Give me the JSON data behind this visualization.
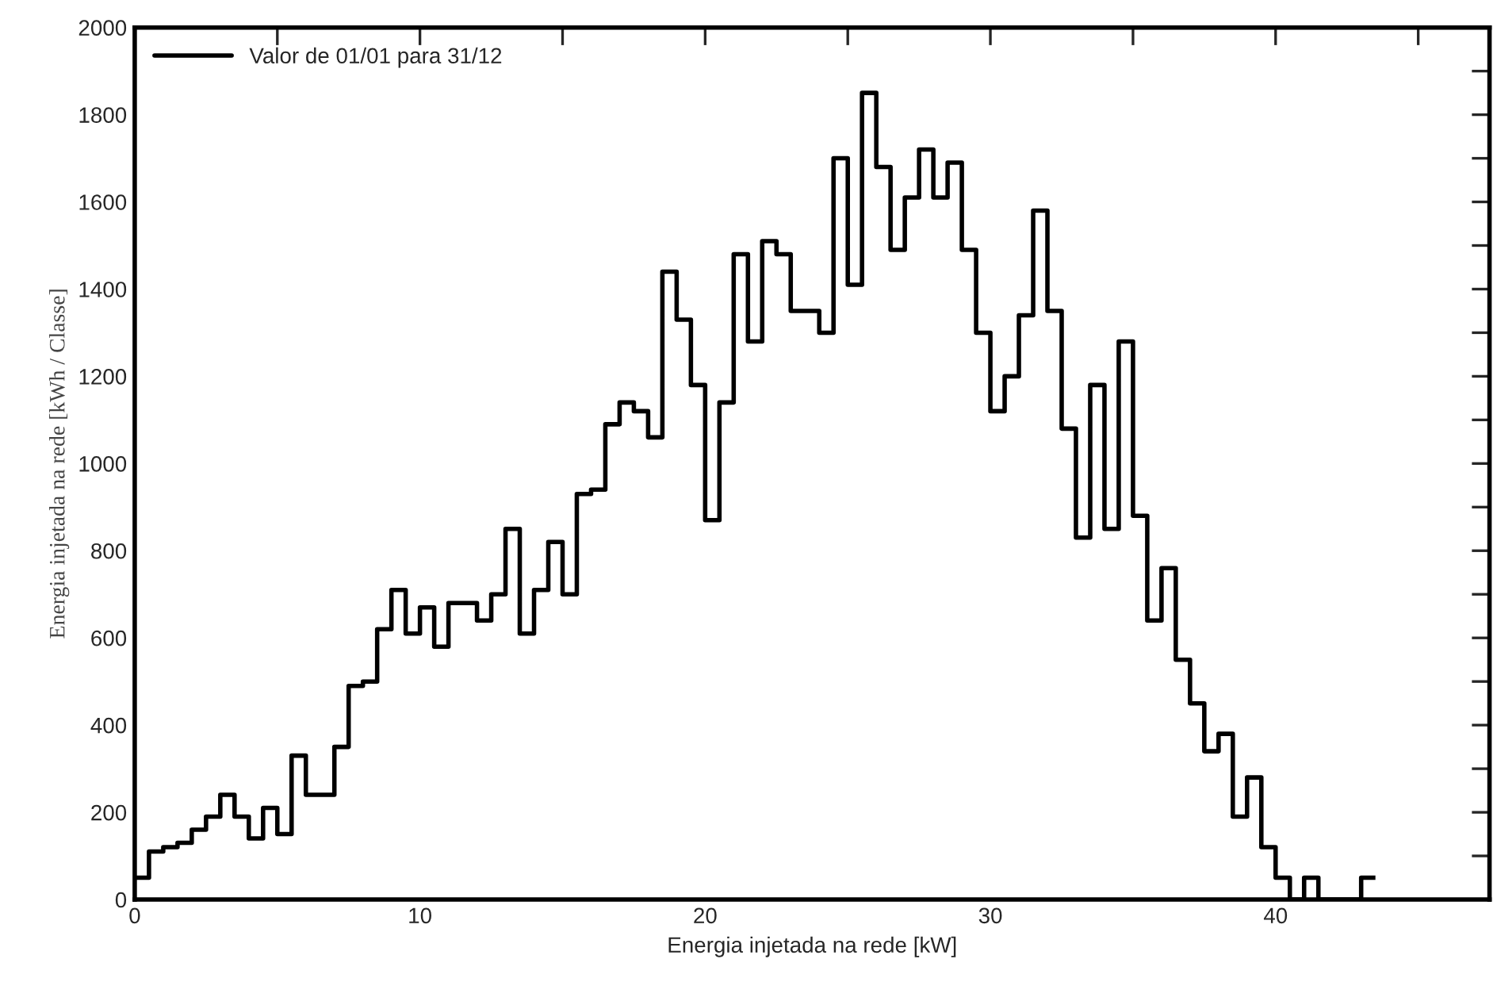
{
  "chart_data": {
    "type": "histogram",
    "xlabel": "Energia injetada na rede [kW]",
    "ylabel": "Energia injetada na rede [kWh / Classe]",
    "bins": [
      0,
      0.5,
      1,
      1.5,
      2,
      2.5,
      3,
      3.5,
      4,
      4.5,
      5,
      5.5,
      6,
      6.5,
      7,
      7.5,
      8,
      8.5,
      9,
      9.5,
      10,
      10.5,
      11,
      11.5,
      12,
      12.5,
      13,
      13.5,
      14,
      14.5,
      15,
      15.5,
      16,
      16.5,
      17,
      17.5,
      18,
      18.5,
      19,
      19.5,
      20,
      20.5,
      21,
      21.5,
      22,
      22.5,
      23,
      23.5,
      24,
      24.5,
      25,
      25.5,
      26,
      26.5,
      27,
      27.5,
      28,
      28.5,
      29,
      29.5,
      30,
      30.5,
      31,
      31.5,
      32,
      32.5,
      33,
      33.5,
      34,
      34.5,
      35,
      35.5,
      36,
      36.5,
      37,
      37.5,
      38,
      38.5,
      39,
      39.5,
      40,
      40.5,
      41,
      41.5,
      42,
      42.5,
      43,
      43.5
    ],
    "series": [
      {
        "name": "Valor de 01/01 para 31/12",
        "color": "#000000",
        "values": [
          50,
          110,
          120,
          130,
          160,
          190,
          240,
          190,
          140,
          210,
          150,
          330,
          240,
          240,
          350,
          490,
          500,
          620,
          710,
          610,
          670,
          580,
          680,
          680,
          640,
          700,
          850,
          610,
          710,
          820,
          700,
          930,
          940,
          1090,
          1140,
          1120,
          1060,
          1440,
          1330,
          1180,
          870,
          1140,
          1480,
          1280,
          1510,
          1480,
          1350,
          1350,
          1300,
          1700,
          1410,
          1850,
          1680,
          1490,
          1610,
          1720,
          1610,
          1690,
          1490,
          1300,
          1120,
          1200,
          1340,
          1580,
          1350,
          1080,
          830,
          1180,
          850,
          1280,
          880,
          640,
          760,
          550,
          450,
          340,
          380,
          190,
          280,
          120,
          50,
          0,
          50,
          0,
          0,
          0,
          50
        ]
      }
    ],
    "xlim": [
      0,
      47.5
    ],
    "xticks": [
      0,
      {
        "value": 5,
        "label": null
      },
      10,
      {
        "value": 15,
        "label": null
      },
      20,
      {
        "value": 25,
        "label": null
      },
      30,
      {
        "value": 35,
        "label": null
      },
      40,
      {
        "value": 45,
        "label": null
      }
    ],
    "ylim": [
      0,
      2000
    ],
    "yticks": [
      0,
      {
        "value": 100,
        "label": null
      },
      200,
      {
        "value": 300,
        "label": null
      },
      400,
      {
        "value": 500,
        "label": null
      },
      600,
      {
        "value": 700,
        "label": null
      },
      800,
      {
        "value": 900,
        "label": null
      },
      1000,
      {
        "value": 1100,
        "label": null
      },
      1200,
      {
        "value": 1300,
        "label": null
      },
      1400,
      {
        "value": 1500,
        "label": null
      },
      1600,
      {
        "value": 1700,
        "label": null
      },
      1800,
      {
        "value": 1900,
        "label": null
      },
      2000
    ],
    "grid": false,
    "legend": "top left"
  }
}
